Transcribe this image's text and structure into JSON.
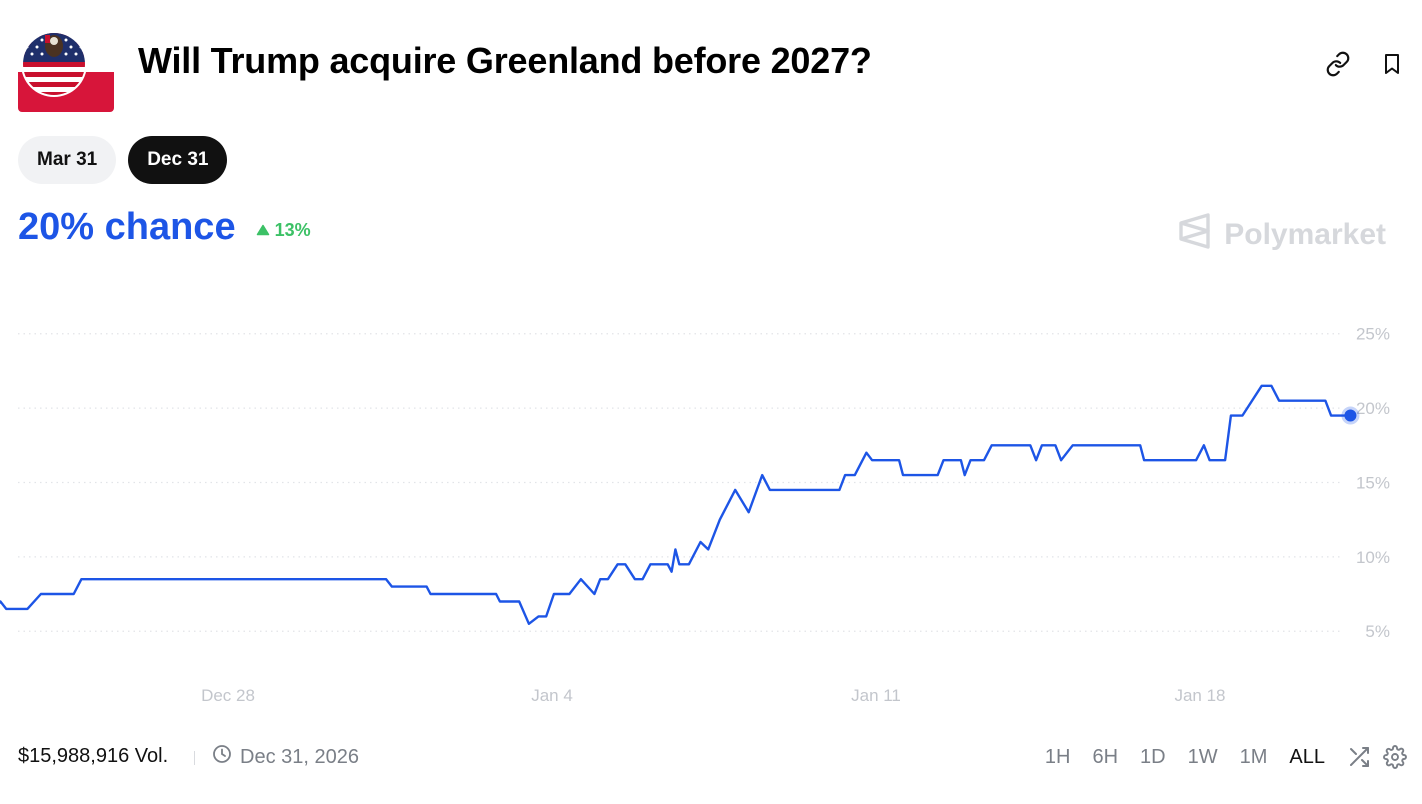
{
  "market": {
    "title": "Will Trump acquire Greenland before 2027?",
    "icon": "us-flag-greenland-icon"
  },
  "header_actions": {
    "link_icon": "link-icon",
    "bookmark_icon": "bookmark-icon"
  },
  "date_tabs": [
    {
      "label": "Mar 31",
      "active": false
    },
    {
      "label": "Dec 31",
      "active": true
    }
  ],
  "summary": {
    "chance": "20% chance",
    "change": "13%",
    "change_direction": "up"
  },
  "brand": {
    "name": "Polymarket"
  },
  "colors": {
    "accent": "#1d55e6",
    "positive": "#3cc166",
    "muted": "#7a7f87"
  },
  "chart_data": {
    "type": "line",
    "title": "",
    "xlabel": "",
    "ylabel": "",
    "ylim": [
      3.2,
      27.0
    ],
    "xlim": [
      "Dec 21",
      "Jan 21"
    ],
    "y_ticks": [
      5,
      10,
      15,
      20,
      25
    ],
    "y_tick_labels": [
      "5%",
      "10%",
      "15%",
      "20%",
      "25%"
    ],
    "x_ticks": [
      "Dec 28",
      "Jan 4",
      "Jan 11",
      "Jan 18"
    ],
    "x_tick_labels": [
      "Dec 28",
      "Jan 4",
      "Jan 11",
      "Jan 18"
    ],
    "grid": "horizontal-dotted",
    "series": [
      {
        "values": [
          [
            "Dec 21 12:00",
            7.0
          ],
          [
            "Dec 21 13:00",
            5.5
          ],
          [
            "Dec 21 20:00",
            5.5
          ],
          [
            "Dec 22 02:00",
            6.5
          ],
          [
            "Dec 22 10:00",
            6.5
          ],
          [
            "Dec 22 14:00",
            7.0
          ],
          [
            "Dec 22 18:00",
            6.5
          ],
          [
            "Dec 22 23:00",
            6.5
          ],
          [
            "Dec 23 02:00",
            7.0
          ],
          [
            "Dec 23 05:00",
            6.5
          ],
          [
            "Dec 23 16:00",
            6.5
          ],
          [
            "Dec 23 23:00",
            7.5
          ],
          [
            "Dec 24 16:00",
            7.5
          ],
          [
            "Dec 24 20:00",
            8.5
          ],
          [
            "Dec 31 10:00",
            8.5
          ],
          [
            "Dec 31 13:00",
            8.0
          ],
          [
            "Jan 1 07:00",
            8.0
          ],
          [
            "Jan 1 09:00",
            7.5
          ],
          [
            "Jan 2 19:00",
            7.5
          ],
          [
            "Jan 2 21:00",
            7.0
          ],
          [
            "Jan 3 07:00",
            7.0
          ],
          [
            "Jan 3 12:00",
            5.5
          ],
          [
            "Jan 3 17:00",
            6.0
          ],
          [
            "Jan 3 21:00",
            6.0
          ],
          [
            "Jan 4 01:00",
            7.5
          ],
          [
            "Jan 4 09:00",
            7.5
          ],
          [
            "Jan 4 15:00",
            8.5
          ],
          [
            "Jan 4 22:00",
            7.5
          ],
          [
            "Jan 5 01:00",
            8.5
          ],
          [
            "Jan 5 05:00",
            8.5
          ],
          [
            "Jan 5 10:00",
            9.5
          ],
          [
            "Jan 5 14:00",
            9.5
          ],
          [
            "Jan 5 19:00",
            8.5
          ],
          [
            "Jan 5 23:00",
            8.5
          ],
          [
            "Jan 6 03:00",
            9.5
          ],
          [
            "Jan 6 12:00",
            9.5
          ],
          [
            "Jan 6 14:00",
            9.0
          ],
          [
            "Jan 6 16:00",
            10.5
          ],
          [
            "Jan 6 18:00",
            9.5
          ],
          [
            "Jan 6 23:00",
            9.5
          ],
          [
            "Jan 7 05:00",
            11.0
          ],
          [
            "Jan 7 09:00",
            10.5
          ],
          [
            "Jan 7 15:00",
            12.5
          ],
          [
            "Jan 7 23:00",
            14.5
          ],
          [
            "Jan 8 06:00",
            13.0
          ],
          [
            "Jan 8 13:00",
            15.5
          ],
          [
            "Jan 8 17:00",
            14.5
          ],
          [
            "Jan 10 05:00",
            14.5
          ],
          [
            "Jan 10 08:00",
            15.5
          ],
          [
            "Jan 10 13:00",
            15.5
          ],
          [
            "Jan 10 19:00",
            17.0
          ],
          [
            "Jan 10 22:00",
            16.5
          ],
          [
            "Jan 11 12:00",
            16.5
          ],
          [
            "Jan 11 14:00",
            15.5
          ],
          [
            "Jan 12 08:00",
            15.5
          ],
          [
            "Jan 12 11:00",
            16.5
          ],
          [
            "Jan 12 20:00",
            16.5
          ],
          [
            "Jan 12 22:00",
            15.5
          ],
          [
            "Jan 13 01:00",
            16.5
          ],
          [
            "Jan 13 08:00",
            16.5
          ],
          [
            "Jan 13 12:00",
            17.5
          ],
          [
            "Jan 14 08:00",
            17.5
          ],
          [
            "Jan 14 11:00",
            16.5
          ],
          [
            "Jan 14 14:00",
            17.5
          ],
          [
            "Jan 14 21:00",
            17.5
          ],
          [
            "Jan 15 00:00",
            16.5
          ],
          [
            "Jan 15 06:00",
            17.5
          ],
          [
            "Jan 16 17:00",
            17.5
          ],
          [
            "Jan 16 19:00",
            16.5
          ],
          [
            "Jan 17 22:00",
            16.5
          ],
          [
            "Jan 18 02:00",
            17.5
          ],
          [
            "Jan 18 05:00",
            16.5
          ],
          [
            "Jan 18 13:00",
            16.5
          ],
          [
            "Jan 18 16:00",
            19.5
          ],
          [
            "Jan 18 22:00",
            19.5
          ],
          [
            "Jan 19 08:00",
            21.5
          ],
          [
            "Jan 19 13:00",
            21.5
          ],
          [
            "Jan 19 17:00",
            20.5
          ],
          [
            "Jan 20 17:00",
            20.5
          ],
          [
            "Jan 20 20:00",
            19.5
          ],
          [
            "Jan 21 06:00",
            19.5
          ]
        ]
      }
    ]
  },
  "footer": {
    "volume": "$15,988,916 Vol.",
    "clock_icon": "clock-icon",
    "end_date": "Dec 31, 2026",
    "ranges": [
      {
        "label": "1H",
        "active": false
      },
      {
        "label": "6H",
        "active": false
      },
      {
        "label": "1D",
        "active": false
      },
      {
        "label": "1W",
        "active": false
      },
      {
        "label": "1M",
        "active": false
      },
      {
        "label": "ALL",
        "active": true
      }
    ],
    "shuffle_icon": "shuffle-icon",
    "settings_icon": "gear-icon"
  }
}
